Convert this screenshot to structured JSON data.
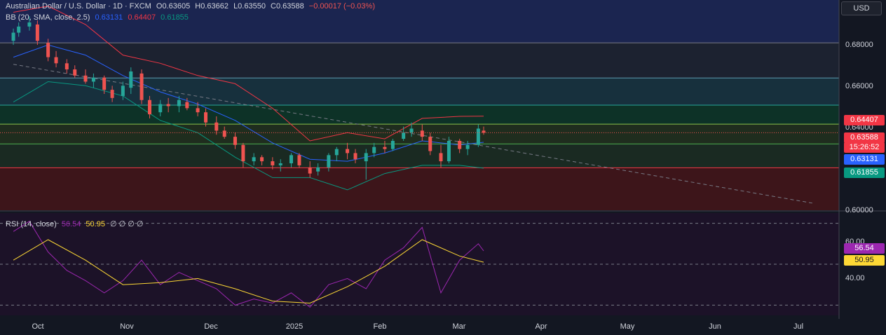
{
  "header": {
    "symbol": "Australian Dollar / U.S. Dollar · 1D · FXCM",
    "open": "O0.63605",
    "high": "H0.63662",
    "low": "L0.63550",
    "close": "C0.63588",
    "change": "−0.00017 (−0.03%)",
    "bb_label": "BB (20, SMA, close, 2.5)",
    "bb_basis": "0.63131",
    "bb_upper": "0.64407",
    "bb_lower": "0.61855",
    "rsi_label": "RSI (14, close)",
    "rsi_value": "56.54",
    "rsi_ma": "50.95",
    "rsi_extra": "∅ ∅ ∅ ∅"
  },
  "currency_button": "USD",
  "price_axis": [
    "0.68000",
    "0.66000",
    "0.64000",
    "0.60000"
  ],
  "rsi_axis": [
    "60.00",
    "40.00"
  ],
  "tags": {
    "upper": "0.64407",
    "last": "0.63588",
    "countdown": "15:26:52",
    "basis": "0.63131",
    "lower": "0.61855",
    "rsi": "56.54",
    "rsi_ma": "50.95"
  },
  "time_axis": [
    "Oct",
    "Nov",
    "Dec",
    "2025",
    "Feb",
    "Mar",
    "Apr",
    "May",
    "Jun",
    "Jul"
  ],
  "colors": {
    "up": "#26a69a",
    "down": "#ef5350",
    "basis": "#2962ff",
    "upper": "#f23645",
    "lower": "#089981",
    "rsi": "#9c27b0",
    "rsi_ma": "#fdd835"
  },
  "chart_data": {
    "type": "candlestick",
    "y_range": [
      0.598,
      0.701
    ],
    "rsi_range": [
      25,
      75
    ],
    "horizontal_levels": [
      0.68,
      0.6628,
      0.6495,
      0.6402,
      0.6305,
      0.6188
    ],
    "trendline": {
      "start": [
        "2024-09-24",
        0.6695
      ],
      "end": [
        "2025-07-20",
        0.6015
      ]
    },
    "candles": [
      [
        "2024-09-24",
        0.681,
        0.687,
        0.679,
        0.685
      ],
      [
        "2024-09-26",
        0.685,
        0.69,
        0.683,
        0.688
      ],
      [
        "2024-09-30",
        0.688,
        0.693,
        0.686,
        0.69
      ],
      [
        "2024-10-03",
        0.689,
        0.691,
        0.679,
        0.681
      ],
      [
        "2024-10-07",
        0.68,
        0.682,
        0.671,
        0.673
      ],
      [
        "2024-10-10",
        0.673,
        0.676,
        0.668,
        0.67
      ],
      [
        "2024-10-14",
        0.67,
        0.672,
        0.665,
        0.667
      ],
      [
        "2024-10-17",
        0.667,
        0.669,
        0.663,
        0.664
      ],
      [
        "2024-10-21",
        0.664,
        0.667,
        0.66,
        0.661
      ],
      [
        "2024-10-24",
        0.661,
        0.665,
        0.658,
        0.663
      ],
      [
        "2024-10-28",
        0.663,
        0.664,
        0.655,
        0.657
      ],
      [
        "2024-10-31",
        0.657,
        0.659,
        0.651,
        0.653
      ],
      [
        "2024-11-04",
        0.654,
        0.661,
        0.652,
        0.659
      ],
      [
        "2024-11-07",
        0.658,
        0.668,
        0.655,
        0.666
      ],
      [
        "2024-11-11",
        0.665,
        0.667,
        0.65,
        0.652
      ],
      [
        "2024-11-14",
        0.652,
        0.654,
        0.643,
        0.645
      ],
      [
        "2024-11-18",
        0.646,
        0.652,
        0.644,
        0.65
      ],
      [
        "2024-11-21",
        0.65,
        0.653,
        0.646,
        0.649
      ],
      [
        "2024-11-25",
        0.649,
        0.654,
        0.646,
        0.652
      ],
      [
        "2024-11-28",
        0.651,
        0.653,
        0.647,
        0.648
      ],
      [
        "2024-12-02",
        0.648,
        0.651,
        0.644,
        0.646
      ],
      [
        "2024-12-05",
        0.646,
        0.648,
        0.639,
        0.641
      ],
      [
        "2024-12-09",
        0.641,
        0.644,
        0.635,
        0.637
      ],
      [
        "2024-12-12",
        0.637,
        0.639,
        0.633,
        0.634
      ],
      [
        "2024-12-16",
        0.634,
        0.636,
        0.628,
        0.63
      ],
      [
        "2024-12-19",
        0.63,
        0.631,
        0.619,
        0.622
      ],
      [
        "2024-12-23",
        0.622,
        0.626,
        0.62,
        0.624
      ],
      [
        "2024-12-26",
        0.624,
        0.625,
        0.62,
        0.622
      ],
      [
        "2024-12-30",
        0.622,
        0.624,
        0.618,
        0.62
      ],
      [
        "2025-01-02",
        0.62,
        0.623,
        0.617,
        0.621
      ],
      [
        "2025-01-06",
        0.621,
        0.626,
        0.619,
        0.625
      ],
      [
        "2025-01-09",
        0.625,
        0.626,
        0.619,
        0.62
      ],
      [
        "2025-01-13",
        0.619,
        0.622,
        0.614,
        0.616
      ],
      [
        "2025-01-16",
        0.617,
        0.621,
        0.615,
        0.619
      ],
      [
        "2025-01-20",
        0.619,
        0.626,
        0.617,
        0.625
      ],
      [
        "2025-01-23",
        0.625,
        0.629,
        0.622,
        0.628
      ],
      [
        "2025-01-27",
        0.628,
        0.631,
        0.623,
        0.626
      ],
      [
        "2025-01-30",
        0.626,
        0.628,
        0.621,
        0.623
      ],
      [
        "2025-02-03",
        0.622,
        0.628,
        0.613,
        0.626
      ],
      [
        "2025-02-06",
        0.626,
        0.631,
        0.624,
        0.629
      ],
      [
        "2025-02-10",
        0.629,
        0.632,
        0.626,
        0.628
      ],
      [
        "2025-02-13",
        0.628,
        0.633,
        0.627,
        0.632
      ],
      [
        "2025-02-17",
        0.633,
        0.639,
        0.632,
        0.636
      ],
      [
        "2025-02-20",
        0.636,
        0.641,
        0.634,
        0.638
      ],
      [
        "2025-02-24",
        0.637,
        0.64,
        0.632,
        0.634
      ],
      [
        "2025-02-27",
        0.634,
        0.636,
        0.625,
        0.627
      ],
      [
        "2025-03-03",
        0.626,
        0.63,
        0.619,
        0.622
      ],
      [
        "2025-03-06",
        0.622,
        0.634,
        0.621,
        0.632
      ],
      [
        "2025-03-10",
        0.632,
        0.633,
        0.626,
        0.628
      ],
      [
        "2025-03-13",
        0.628,
        0.632,
        0.625,
        0.63
      ],
      [
        "2025-03-17",
        0.63,
        0.64,
        0.629,
        0.638
      ],
      [
        "2025-03-19",
        0.637,
        0.639,
        0.635,
        0.636
      ]
    ],
    "bb_basis": [
      [
        "2024-09-24",
        0.673
      ],
      [
        "2024-10-07",
        0.679
      ],
      [
        "2024-10-21",
        0.674
      ],
      [
        "2024-11-04",
        0.664
      ],
      [
        "2024-11-18",
        0.656
      ],
      [
        "2024-12-02",
        0.65
      ],
      [
        "2024-12-16",
        0.642
      ],
      [
        "2024-12-30",
        0.631
      ],
      [
        "2025-01-13",
        0.623
      ],
      [
        "2025-01-27",
        0.622
      ],
      [
        "2025-02-10",
        0.626
      ],
      [
        "2025-02-24",
        0.632
      ],
      [
        "2025-03-10",
        0.63
      ],
      [
        "2025-03-19",
        0.6313
      ]
    ],
    "bb_upper": [
      [
        "2024-09-24",
        0.695
      ],
      [
        "2024-10-07",
        0.698
      ],
      [
        "2024-10-21",
        0.689
      ],
      [
        "2024-11-04",
        0.674
      ],
      [
        "2024-11-18",
        0.67
      ],
      [
        "2024-12-02",
        0.664
      ],
      [
        "2024-12-16",
        0.66
      ],
      [
        "2024-12-30",
        0.648
      ],
      [
        "2025-01-13",
        0.632
      ],
      [
        "2025-01-27",
        0.636
      ],
      [
        "2025-02-10",
        0.633
      ],
      [
        "2025-02-24",
        0.643
      ],
      [
        "2025-03-10",
        0.644
      ],
      [
        "2025-03-19",
        0.6441
      ]
    ],
    "bb_lower": [
      [
        "2024-09-24",
        0.651
      ],
      [
        "2024-10-07",
        0.661
      ],
      [
        "2024-10-21",
        0.659
      ],
      [
        "2024-11-04",
        0.654
      ],
      [
        "2024-11-18",
        0.642
      ],
      [
        "2024-12-02",
        0.636
      ],
      [
        "2024-12-16",
        0.624
      ],
      [
        "2024-12-30",
        0.614
      ],
      [
        "2025-01-13",
        0.614
      ],
      [
        "2025-01-27",
        0.608
      ],
      [
        "2025-02-10",
        0.616
      ],
      [
        "2025-02-24",
        0.62
      ],
      [
        "2025-03-10",
        0.62
      ],
      [
        "2025-03-19",
        0.6186
      ]
    ],
    "rsi": [
      [
        "2024-09-24",
        66
      ],
      [
        "2024-09-30",
        71
      ],
      [
        "2024-10-07",
        56
      ],
      [
        "2024-10-14",
        47
      ],
      [
        "2024-10-21",
        42
      ],
      [
        "2024-10-28",
        36
      ],
      [
        "2024-11-04",
        42
      ],
      [
        "2024-11-11",
        52
      ],
      [
        "2024-11-18",
        40
      ],
      [
        "2024-11-25",
        46
      ],
      [
        "2024-12-02",
        42
      ],
      [
        "2024-12-09",
        38
      ],
      [
        "2024-12-16",
        30
      ],
      [
        "2024-12-23",
        33
      ],
      [
        "2024-12-30",
        31
      ],
      [
        "2025-01-06",
        36
      ],
      [
        "2025-01-13",
        29
      ],
      [
        "2025-01-20",
        40
      ],
      [
        "2025-01-27",
        43
      ],
      [
        "2025-02-03",
        38
      ],
      [
        "2025-02-10",
        52
      ],
      [
        "2025-02-17",
        58
      ],
      [
        "2025-02-24",
        68
      ],
      [
        "2025-03-03",
        36
      ],
      [
        "2025-03-10",
        52
      ],
      [
        "2025-03-17",
        60
      ],
      [
        "2025-03-19",
        56.5
      ]
    ],
    "rsi_ma": [
      [
        "2024-09-24",
        52
      ],
      [
        "2024-10-07",
        62
      ],
      [
        "2024-10-21",
        52
      ],
      [
        "2024-11-04",
        40
      ],
      [
        "2024-11-18",
        41
      ],
      [
        "2024-12-02",
        43
      ],
      [
        "2024-12-16",
        38
      ],
      [
        "2024-12-30",
        32
      ],
      [
        "2025-01-13",
        31
      ],
      [
        "2025-01-27",
        39
      ],
      [
        "2025-02-10",
        49
      ],
      [
        "2025-02-24",
        62
      ],
      [
        "2025-03-10",
        54
      ],
      [
        "2025-03-19",
        51
      ]
    ]
  }
}
